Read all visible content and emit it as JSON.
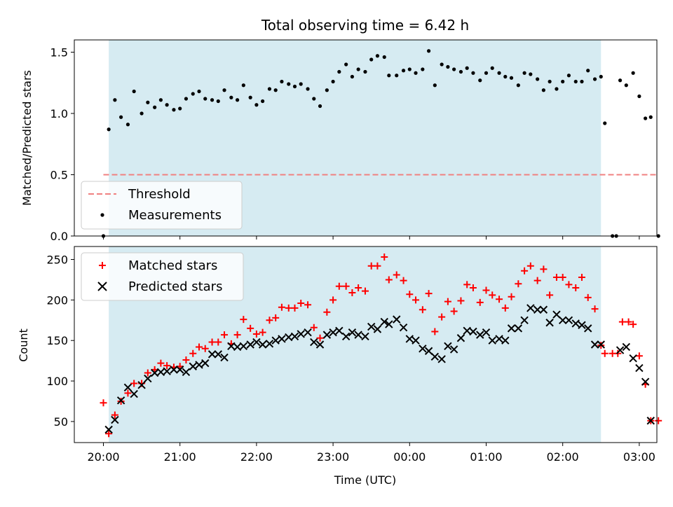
{
  "chart_data": [
    {
      "type": "scatter",
      "title": "Total observing time = 6.42 h",
      "ylabel": "Matched/Predicted stars",
      "xlabel": "",
      "xlim": [
        19.62,
        27.23
      ],
      "ylim": [
        0.0,
        1.6
      ],
      "yticks": [
        0.0,
        0.5,
        1.0,
        1.5
      ],
      "ytick_labels": [
        "0.0",
        "0.5",
        "1.0",
        "1.5"
      ],
      "shaded_span": [
        20.07,
        26.5
      ],
      "legend": {
        "position": "lower-left",
        "entries": [
          "Threshold",
          "Measurements"
        ]
      },
      "threshold": {
        "name": "Threshold",
        "y": 0.5,
        "x": [
          20.0,
          27.25
        ],
        "color": "#f08080"
      },
      "series": [
        {
          "name": "Measurements",
          "color": "#000000",
          "x": [
            20.0,
            20.07,
            20.15,
            20.23,
            20.32,
            20.4,
            20.5,
            20.58,
            20.67,
            20.75,
            20.83,
            20.92,
            21.0,
            21.08,
            21.17,
            21.25,
            21.33,
            21.42,
            21.5,
            21.58,
            21.67,
            21.75,
            21.83,
            21.92,
            22.0,
            22.08,
            22.17,
            22.25,
            22.33,
            22.42,
            22.5,
            22.58,
            22.67,
            22.75,
            22.83,
            22.92,
            23.0,
            23.08,
            23.17,
            23.25,
            23.33,
            23.42,
            23.5,
            23.58,
            23.67,
            23.73,
            23.83,
            23.92,
            24.0,
            24.08,
            24.17,
            24.25,
            24.33,
            24.42,
            24.5,
            24.58,
            24.67,
            24.75,
            24.83,
            24.92,
            25.0,
            25.08,
            25.17,
            25.25,
            25.33,
            25.42,
            25.5,
            25.58,
            25.67,
            25.75,
            25.83,
            25.92,
            26.0,
            26.08,
            26.17,
            26.25,
            26.33,
            26.42,
            26.5,
            26.55,
            26.65,
            26.7,
            26.75,
            26.83,
            26.92,
            27.0,
            27.08,
            27.15,
            27.25
          ],
          "y": [
            0.0,
            0.87,
            1.11,
            0.97,
            0.91,
            1.18,
            1.0,
            1.09,
            1.05,
            1.11,
            1.07,
            1.03,
            1.04,
            1.12,
            1.16,
            1.18,
            1.12,
            1.11,
            1.1,
            1.19,
            1.13,
            1.11,
            1.23,
            1.13,
            1.07,
            1.1,
            1.2,
            1.19,
            1.26,
            1.24,
            1.22,
            1.24,
            1.2,
            1.12,
            1.06,
            1.19,
            1.26,
            1.34,
            1.4,
            1.3,
            1.36,
            1.34,
            1.44,
            1.47,
            1.46,
            1.31,
            1.31,
            1.35,
            1.36,
            1.33,
            1.36,
            1.51,
            1.23,
            1.4,
            1.38,
            1.36,
            1.34,
            1.37,
            1.33,
            1.27,
            1.33,
            1.37,
            1.33,
            1.3,
            1.29,
            1.23,
            1.33,
            1.32,
            1.28,
            1.19,
            1.26,
            1.2,
            1.26,
            1.31,
            1.26,
            1.26,
            1.35,
            1.28,
            1.3,
            0.92,
            0.0,
            0.0,
            1.27,
            1.23,
            1.33,
            1.14,
            0.96,
            0.97,
            0.0
          ]
        }
      ]
    },
    {
      "type": "scatter",
      "title": "",
      "ylabel": "Count",
      "xlabel": "Time (UTC)",
      "xlim": [
        19.62,
        27.23
      ],
      "ylim": [
        24,
        266
      ],
      "yticks": [
        50,
        100,
        150,
        200,
        250
      ],
      "ytick_labels": [
        "50",
        "100",
        "150",
        "200",
        "250"
      ],
      "xticks": [
        20,
        21,
        22,
        23,
        24,
        25,
        26,
        27
      ],
      "xtick_labels": [
        "20:00",
        "21:00",
        "22:00",
        "23:00",
        "00:00",
        "01:00",
        "02:00",
        "03:00"
      ],
      "shaded_span": [
        20.07,
        26.5
      ],
      "legend": {
        "position": "upper-left",
        "entries": [
          "Matched stars",
          "Predicted stars"
        ]
      },
      "series": [
        {
          "name": "Matched stars",
          "marker": "plus",
          "color": "#ff0000",
          "x": [
            20.0,
            20.07,
            20.15,
            20.23,
            20.32,
            20.4,
            20.5,
            20.58,
            20.67,
            20.75,
            20.83,
            20.92,
            21.0,
            21.08,
            21.17,
            21.25,
            21.33,
            21.42,
            21.5,
            21.58,
            21.67,
            21.75,
            21.83,
            21.92,
            22.0,
            22.08,
            22.17,
            22.25,
            22.33,
            22.42,
            22.5,
            22.58,
            22.67,
            22.75,
            22.83,
            22.92,
            23.0,
            23.08,
            23.17,
            23.25,
            23.33,
            23.42,
            23.5,
            23.58,
            23.67,
            23.73,
            23.83,
            23.92,
            24.0,
            24.08,
            24.17,
            24.25,
            24.33,
            24.42,
            24.5,
            24.58,
            24.67,
            24.75,
            24.83,
            24.92,
            25.0,
            25.08,
            25.17,
            25.25,
            25.33,
            25.42,
            25.5,
            25.58,
            25.67,
            25.75,
            25.83,
            25.92,
            26.0,
            26.08,
            26.17,
            26.25,
            26.33,
            26.42,
            26.5,
            26.55,
            26.65,
            26.72,
            26.78,
            26.86,
            26.92,
            27.0,
            27.08,
            27.15,
            27.25
          ],
          "y": [
            73,
            35,
            58,
            75,
            85,
            97,
            97,
            110,
            114,
            122,
            119,
            117,
            118,
            126,
            134,
            142,
            140,
            148,
            148,
            157,
            146,
            157,
            176,
            165,
            158,
            160,
            175,
            178,
            191,
            190,
            190,
            196,
            194,
            166,
            153,
            185,
            200,
            217,
            217,
            209,
            215,
            211,
            242,
            242,
            253,
            225,
            231,
            224,
            207,
            200,
            188,
            208,
            161,
            179,
            198,
            186,
            199,
            219,
            215,
            197,
            212,
            206,
            201,
            190,
            204,
            220,
            236,
            242,
            224,
            238,
            206,
            228,
            228,
            219,
            215,
            228,
            203,
            189,
            144,
            134,
            134,
            134,
            173,
            173,
            170,
            131,
            96,
            51,
            51
          ]
        },
        {
          "name": "Predicted stars",
          "marker": "x",
          "color": "#000000",
          "x": [
            20.07,
            20.15,
            20.23,
            20.32,
            20.4,
            20.5,
            20.58,
            20.67,
            20.75,
            20.83,
            20.92,
            21.0,
            21.08,
            21.17,
            21.25,
            21.33,
            21.42,
            21.5,
            21.58,
            21.67,
            21.75,
            21.83,
            21.92,
            22.0,
            22.08,
            22.17,
            22.25,
            22.33,
            22.42,
            22.5,
            22.58,
            22.67,
            22.75,
            22.83,
            22.92,
            23.0,
            23.08,
            23.17,
            23.25,
            23.33,
            23.42,
            23.5,
            23.58,
            23.67,
            23.73,
            23.83,
            23.92,
            24.0,
            24.08,
            24.17,
            24.25,
            24.33,
            24.42,
            24.5,
            24.58,
            24.67,
            24.75,
            24.83,
            24.92,
            25.0,
            25.08,
            25.17,
            25.25,
            25.33,
            25.42,
            25.5,
            25.58,
            25.67,
            25.75,
            25.83,
            25.92,
            26.0,
            26.08,
            26.17,
            26.25,
            26.33,
            26.42,
            26.5,
            26.75,
            26.83,
            26.92,
            27.0,
            27.08,
            27.15
          ],
          "y": [
            40,
            52,
            76,
            92,
            84,
            95,
            103,
            110,
            111,
            112,
            114,
            114,
            111,
            118,
            120,
            122,
            133,
            133,
            129,
            143,
            142,
            143,
            145,
            148,
            145,
            146,
            150,
            152,
            154,
            155,
            158,
            160,
            148,
            145,
            157,
            160,
            162,
            155,
            160,
            157,
            155,
            167,
            164,
            173,
            170,
            176,
            166,
            152,
            150,
            140,
            137,
            130,
            127,
            143,
            139,
            153,
            162,
            161,
            157,
            160,
            150,
            152,
            150,
            165,
            165,
            175,
            190,
            188,
            188,
            172,
            182,
            175,
            175,
            171,
            169,
            165,
            145,
            145,
            138,
            142,
            128,
            116,
            99,
            51
          ]
        }
      ]
    }
  ]
}
